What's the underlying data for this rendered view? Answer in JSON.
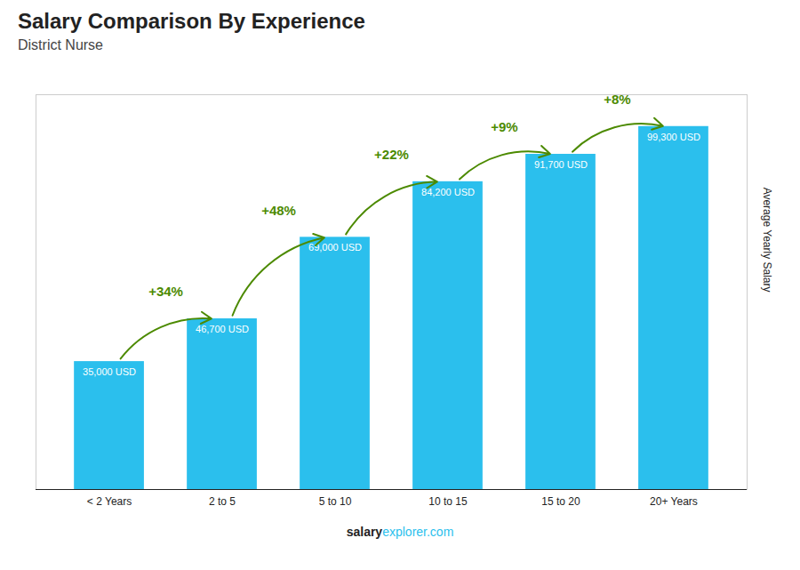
{
  "chart_data": {
    "type": "bar",
    "title": "Salary Comparison By Experience",
    "subtitle": "District Nurse",
    "categories": [
      "< 2 Years",
      "2 to 5",
      "5 to 10",
      "10 to 15",
      "15 to 20",
      "20+ Years"
    ],
    "values": [
      35000,
      46700,
      69000,
      84200,
      91700,
      99300
    ],
    "value_labels": [
      "35,000 USD",
      "46,700 USD",
      "69,000 USD",
      "84,200 USD",
      "91,700 USD",
      "99,300 USD"
    ],
    "data_labels": true,
    "color": "#2bbfed",
    "ylabel": "Average Yearly Salary",
    "ylim": [
      0,
      108000
    ],
    "tick_labels": "x",
    "grid": false,
    "annotations": [
      {
        "from": "< 2 Years",
        "to": "2 to 5",
        "text": "+34%"
      },
      {
        "from": "2 to 5",
        "to": "5 to 10",
        "text": "+48%"
      },
      {
        "from": "5 to 10",
        "to": "10 to 15",
        "text": "+22%"
      },
      {
        "from": "10 to 15",
        "to": "15 to 20",
        "text": "+9%"
      },
      {
        "from": "15 to 20",
        "to": "20+ Years",
        "text": "+8%"
      }
    ],
    "footer": [
      "salary",
      "explorer.com"
    ]
  }
}
